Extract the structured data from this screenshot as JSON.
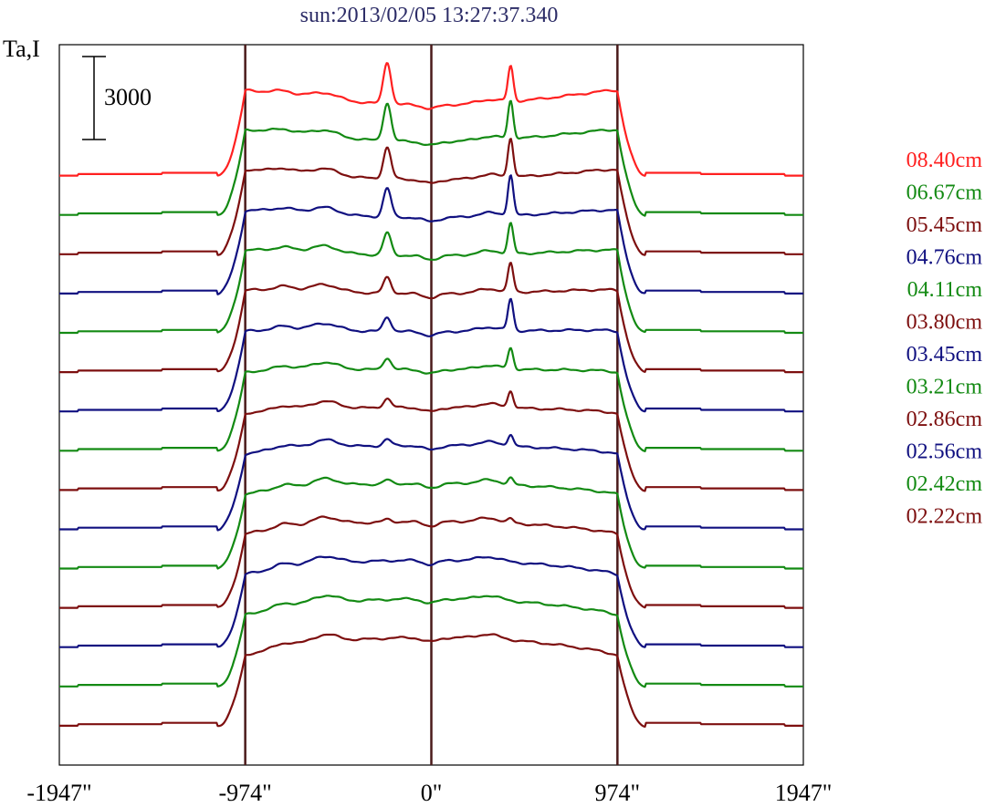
{
  "chart_data": {
    "type": "line",
    "title": "sun:2013/02/05 13:27:37.340",
    "ylabel": "Ta,I",
    "xlabel": "",
    "scale_bar_label": "3000",
    "scale_bar_value": 3000,
    "x_ticks": [
      "-1947\"",
      "-974\"",
      "0\"",
      "974\"",
      "1947\""
    ],
    "x_tick_values": [
      -1947,
      -974,
      0,
      974,
      1947
    ],
    "xlim": [
      -1947,
      1947
    ],
    "vlines": [
      -974,
      0,
      974
    ],
    "colors": {
      "red": "#ff2020",
      "green": "#138a13",
      "maroon": "#7d0f0f",
      "navy": "#101080",
      "axis": "#000000",
      "vline": "#4a1a1a"
    },
    "legend": [
      {
        "label": "08.40cm",
        "color": "#ff2020"
      },
      {
        "label": "06.67cm",
        "color": "#138a13"
      },
      {
        "label": "05.45cm",
        "color": "#7d0f0f"
      },
      {
        "label": "04.76cm",
        "color": "#101080"
      },
      {
        "label": "04.11cm",
        "color": "#138a13"
      },
      {
        "label": "03.80cm",
        "color": "#7d0f0f"
      },
      {
        "label": "03.45cm",
        "color": "#101080"
      },
      {
        "label": "03.21cm",
        "color": "#138a13"
      },
      {
        "label": "02.86cm",
        "color": "#7d0f0f"
      },
      {
        "label": "02.56cm",
        "color": "#101080"
      },
      {
        "label": "02.42cm",
        "color": "#138a13"
      },
      {
        "label": "02.22cm",
        "color": "#7d0f0f"
      }
    ],
    "series": [
      {
        "color": "#ff2020",
        "baseline": 33500,
        "disk": 5400,
        "limb_bright": 0.3,
        "peak1": 3200,
        "peak2": 2700
      },
      {
        "color": "#138a13",
        "baseline": 30500,
        "disk": 5600,
        "limb_bright": 0.25,
        "peak1": 2900,
        "peak2": 2900
      },
      {
        "color": "#7d0f0f",
        "baseline": 27500,
        "disk": 5700,
        "limb_bright": 0.22,
        "peak1": 2400,
        "peak2": 3000
      },
      {
        "color": "#101080",
        "baseline": 24500,
        "disk": 5800,
        "limb_bright": 0.18,
        "peak1": 2200,
        "peak2": 3100
      },
      {
        "color": "#138a13",
        "baseline": 21500,
        "disk": 5900,
        "limb_bright": 0.15,
        "peak1": 1700,
        "peak2": 2300
      },
      {
        "color": "#7d0f0f",
        "baseline": 18500,
        "disk": 6000,
        "limb_bright": 0.12,
        "peak1": 1200,
        "peak2": 2200
      },
      {
        "color": "#101080",
        "baseline": 15500,
        "disk": 6100,
        "limb_bright": 0.08,
        "peak1": 1100,
        "peak2": 2400
      },
      {
        "color": "#138a13",
        "baseline": 12500,
        "disk": 6200,
        "limb_bright": 0.04,
        "peak1": 900,
        "peak2": 1600
      },
      {
        "color": "#7d0f0f",
        "baseline": 9500,
        "disk": 6300,
        "limb_bright": 0.0,
        "peak1": 700,
        "peak2": 1300
      },
      {
        "color": "#101080",
        "baseline": 6500,
        "disk": 6400,
        "limb_bright": -0.03,
        "peak1": 500,
        "peak2": 900
      },
      {
        "color": "#138a13",
        "baseline": 3500,
        "disk": 6500,
        "limb_bright": -0.06,
        "peak1": 300,
        "peak2": 500
      },
      {
        "color": "#7d0f0f",
        "baseline": 500,
        "disk": 6600,
        "limb_bright": -0.08,
        "peak1": 200,
        "peak2": 300
      },
      {
        "color": "#101080",
        "baseline": -2500,
        "disk": 6650,
        "limb_bright": -0.1,
        "peak1": 0,
        "peak2": 0
      },
      {
        "color": "#138a13",
        "baseline": -5500,
        "disk": 6700,
        "limb_bright": -0.12,
        "peak1": 0,
        "peak2": 0
      },
      {
        "color": "#7d0f0f",
        "baseline": -8500,
        "disk": 6750,
        "limb_bright": -0.14,
        "peak1": 0,
        "peak2": 0
      }
    ],
    "ylim": [
      -11500,
      43500
    ]
  }
}
